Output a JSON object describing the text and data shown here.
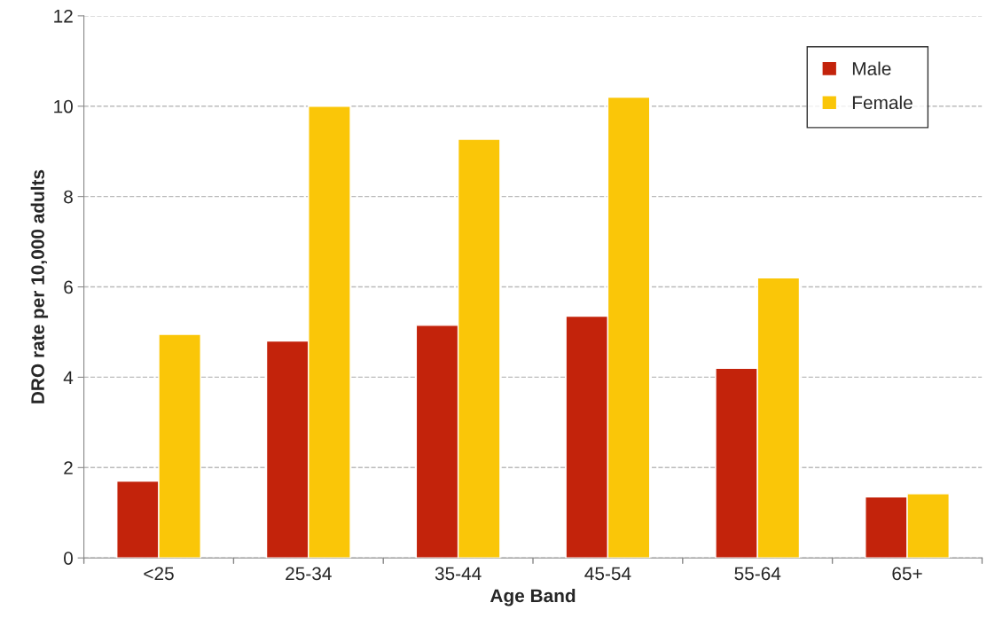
{
  "chart_data": {
    "type": "bar",
    "xlabel": "Age Band",
    "ylabel": "DRO rate per 10,000 adults",
    "categories": [
      "<25",
      "25-34",
      "35-44",
      "45-54",
      "55-64",
      "65+"
    ],
    "series": [
      {
        "name": "Male",
        "color": "#c3230b",
        "values": [
          1.7,
          4.8,
          5.15,
          5.35,
          4.2,
          1.35
        ]
      },
      {
        "name": "Female",
        "color": "#fac608",
        "values": [
          4.95,
          10.0,
          9.27,
          10.2,
          6.2,
          1.42
        ]
      }
    ],
    "ylim": [
      0,
      12
    ],
    "yticks": [
      0,
      2,
      4,
      6,
      8,
      10,
      12
    ],
    "grid": "y",
    "legend": "top right"
  }
}
